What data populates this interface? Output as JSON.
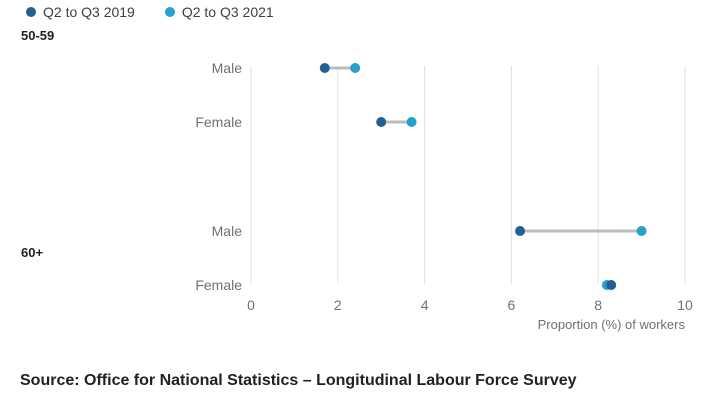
{
  "legend": {
    "series_1": "Q2 to Q3 2019",
    "series_2": "Q2 to Q3 2021"
  },
  "colors": {
    "series_1": "#206095",
    "series_2": "#27a0cc",
    "connector": "#bcbcbd",
    "grid": "#e0e0e0"
  },
  "source": "Source: Office for National Statistics – Longitudinal Labour Force Survey",
  "chart_data": {
    "type": "dumbbell",
    "xlabel": "Proportion (%) of workers",
    "xlim": [
      0,
      10
    ],
    "xticks": [
      0,
      2,
      4,
      6,
      8,
      10
    ],
    "grid": true,
    "legend_position": "top-left",
    "groups": [
      "50-59",
      "60+"
    ],
    "categories": [
      {
        "group": "50-59",
        "label": "Male"
      },
      {
        "group": "50-59",
        "label": "Female"
      },
      {
        "group": "60+",
        "label": "Male"
      },
      {
        "group": "60+",
        "label": "Female"
      }
    ],
    "series": [
      {
        "name": "Q2 to Q3 2019",
        "values": [
          1.7,
          3.0,
          6.2,
          8.3
        ]
      },
      {
        "name": "Q2 to Q3 2021",
        "values": [
          2.4,
          3.7,
          9.0,
          8.2
        ]
      }
    ]
  }
}
